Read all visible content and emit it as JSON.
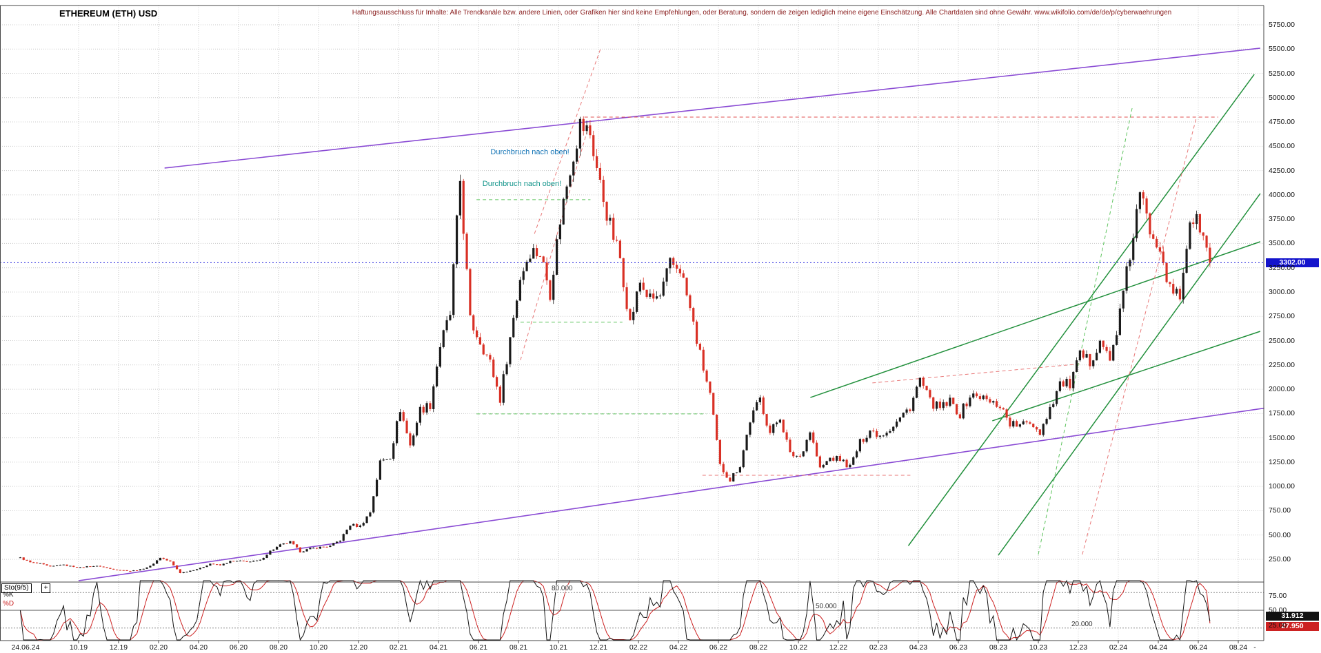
{
  "header": {
    "title": "ETHEREUM (ETH) USD",
    "disclaimer": "Haftungsausschluss für Inhalte: Alle Trendkanäle bzw. andere Linien, oder Grafiken hier sind keine Empfehlungen, oder Beratung, sondern die zeigen lediglich meine eigene Einschätzung. Alle Chartdaten sind ohne Gewähr.  www.wikifolio.com/de/de/p/cyberwaehrungen"
  },
  "chart_data": {
    "type": "candlestick",
    "title": "ETHEREUM (ETH) USD",
    "currency": "USD",
    "start_month": "2019-07",
    "samples_per_month": 2,
    "closes": [
      265,
      218,
      205,
      172,
      197,
      180,
      165,
      182,
      178,
      152,
      140,
      130,
      144,
      180,
      268,
      225,
      110,
      133,
      158,
      206,
      188,
      230,
      232,
      226,
      240,
      335,
      395,
      428,
      330,
      359,
      375,
      386,
      450,
      605,
      590,
      737,
      1250,
      1315,
      1800,
      1420,
      1790,
      1840,
      2450,
      2770,
      4150,
      2700,
      2500,
      2270,
      1900,
      2530,
      3150,
      3430,
      3400,
      3000,
      3750,
      4290,
      4720,
      4630,
      4100,
      3680,
      3350,
      2680,
      3100,
      2920,
      2950,
      3280,
      3250,
      2820,
      2350,
      1940,
      1210,
      1070,
      1220,
      1680,
      1900,
      1550,
      1720,
      1330,
      1310,
      1570,
      1180,
      1290,
      1280,
      1200,
      1450,
      1580,
      1530,
      1600,
      1700,
      1820,
      2100,
      1870,
      1800,
      1870,
      1740,
      1930,
      1930,
      1860,
      1840,
      1650,
      1620,
      1670,
      1560,
      1810,
      2060,
      2050,
      2340,
      2280,
      2520,
      2280,
      2780,
      3380,
      4000,
      3650,
      3500,
      3010,
      2950,
      3760,
      3680,
      3302
    ],
    "ylim": [
      0,
      5900
    ],
    "y_tick_step": 250,
    "y_ticks": [
      "5750.00",
      "5500.00",
      "5250.00",
      "5000.00",
      "4750.00",
      "4500.00",
      "4250.00",
      "4000.00",
      "3750.00",
      "3500.00",
      "3250.00",
      "3000.00",
      "2750.00",
      "2500.00",
      "2250.00",
      "2000.00",
      "1750.00",
      "1500.00",
      "1250.00",
      "1000.00",
      "750.00",
      "500.00",
      "250.00"
    ],
    "x_ticks": {
      "first": "24.06.24",
      "labels": [
        "10.19",
        "12.19",
        "02.20",
        "04.20",
        "06.20",
        "08.20",
        "10.20",
        "12.20",
        "02.21",
        "04.21",
        "06.21",
        "08.21",
        "10.21",
        "12.21",
        "02.22",
        "04.22",
        "06.22",
        "08.22",
        "10.22",
        "12.22",
        "02.23",
        "04.23",
        "06.23",
        "08.23",
        "10.23",
        "12.23",
        "02.24",
        "04.24",
        "06.24",
        "08.24"
      ],
      "trailing": "-"
    },
    "price_marker": {
      "label": "3302.00",
      "value": 3302,
      "color": "#2020dd",
      "badge_bg": "#1414cc"
    },
    "trend_lines": [
      {
        "name": "purple-channel-upper",
        "from": [
          7.3,
          4276
        ],
        "to": [
          62.1,
          5509
        ],
        "color": "#8a4bd4",
        "dash": false,
        "width": 1.6
      },
      {
        "name": "purple-channel-lower",
        "from": [
          3,
          30
        ],
        "to": [
          62.3,
          1805
        ],
        "color": "#8a4bd4",
        "dash": false,
        "width": 1.6
      },
      {
        "name": "green-trend-steep-1",
        "from": [
          44.5,
          390
        ],
        "to": [
          61.8,
          5240
        ],
        "color": "#22903c",
        "dash": false,
        "width": 1.5
      },
      {
        "name": "green-trend-steep-2",
        "from": [
          49,
          292
        ],
        "to": [
          62.1,
          4014
        ],
        "color": "#22903c",
        "dash": false,
        "width": 1.5
      },
      {
        "name": "green-trend-shallow-1",
        "from": [
          39.6,
          1915
        ],
        "to": [
          62.1,
          3518
        ],
        "color": "#22903c",
        "dash": false,
        "width": 1.5
      },
      {
        "name": "green-trend-shallow-2",
        "from": [
          48.7,
          1675
        ],
        "to": [
          62.1,
          2596
        ],
        "color": "#22903c",
        "dash": false,
        "width": 1.5
      },
      {
        "name": "red-resistance-ath",
        "from": [
          28.3,
          4800
        ],
        "to": [
          60,
          4800
        ],
        "color": "#e04f4f",
        "dash": true,
        "width": 1
      },
      {
        "name": "red-steep-channel-a",
        "from": [
          25.8,
          3600
        ],
        "to": [
          29.1,
          5500
        ],
        "color": "#e87777",
        "dash": true,
        "width": 1
      },
      {
        "name": "red-steep-channel-b",
        "from": [
          25.1,
          2300
        ],
        "to": [
          28.5,
          4700
        ],
        "color": "#e87777",
        "dash": true,
        "width": 1
      },
      {
        "name": "red-dashed-mid",
        "from": [
          42.7,
          2065
        ],
        "to": [
          53.2,
          2263
        ],
        "color": "#e87777",
        "dash": true,
        "width": 1
      },
      {
        "name": "red-dashed-low",
        "from": [
          34.2,
          1115
        ],
        "to": [
          44.6,
          1115
        ],
        "color": "#e87777",
        "dash": true,
        "width": 1
      },
      {
        "name": "green-dashed-3950",
        "from": [
          22.9,
          3950
        ],
        "to": [
          28.6,
          3950
        ],
        "color": "#5ec45e",
        "dash": true,
        "width": 1
      },
      {
        "name": "green-dashed-2690",
        "from": [
          25.1,
          2690
        ],
        "to": [
          30.2,
          2690
        ],
        "color": "#5ec45e",
        "dash": true,
        "width": 1
      },
      {
        "name": "green-dashed-1746",
        "from": [
          22.9,
          1746
        ],
        "to": [
          34.4,
          1746
        ],
        "color": "#5ec45e",
        "dash": true,
        "width": 1
      },
      {
        "name": "green-dashed-steep",
        "from": [
          51,
          300
        ],
        "to": [
          55.7,
          4900
        ],
        "color": "#5ec45e",
        "dash": true,
        "width": 1
      },
      {
        "name": "red-dashed-steep",
        "from": [
          53.2,
          300
        ],
        "to": [
          58.9,
          4790
        ],
        "color": "#e87777",
        "dash": true,
        "width": 1
      }
    ],
    "annotations": [
      {
        "text": "Durchbruch nach oben!",
        "m": 23.6,
        "price": 4440,
        "color": "#1273b5"
      },
      {
        "text": "Durchbruch nach oben!",
        "m": 23.2,
        "price": 4113,
        "color": "#11948a"
      }
    ],
    "oscillator": {
      "name": "Sto(9/5)",
      "expand_button": "+",
      "k_label": "%K",
      "d_label": "%D",
      "k_color": "#111111",
      "d_color": "#cc2222",
      "window": 9,
      "smooth": 5,
      "levels": [
        "80.000",
        "50.000",
        "20.000"
      ],
      "right_ticks": [
        "75.00",
        "50.00",
        "25.00"
      ],
      "k_value": "31.912",
      "d_value": "27.950",
      "k_badge_bg": "#111111",
      "d_badge_bg": "#cc2222"
    }
  },
  "colors": {
    "up_candle": "#1a1a1a",
    "down_candle": "#d93025",
    "grid": "#c9c9c9",
    "frame": "#444444",
    "axis_text": "#111111"
  }
}
